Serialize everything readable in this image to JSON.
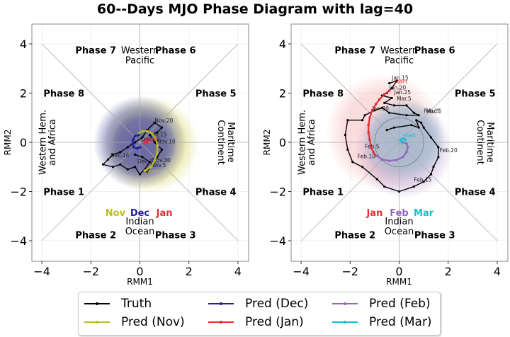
{
  "title": "60--Days MJO Phase Diagram with lag=40",
  "colors": {
    "truth": "#000000",
    "nov": "#bcbd22",
    "dec": "#1f1fa0",
    "jan": "#e03030",
    "feb": "#9467bd",
    "mar": "#17becf"
  },
  "chart_data": [
    {
      "type": "scatter",
      "subtype": "MJO phase diagram (line trajectories)",
      "xlabel": "RMM1",
      "ylabel": "RMM2",
      "xlim": [
        -4.4,
        4.4
      ],
      "ylim": [
        -4.9,
        4.8
      ],
      "xticks": [
        -4,
        -2,
        0,
        2,
        4
      ],
      "yticks": [
        -4,
        -2,
        0,
        2,
        4
      ],
      "grid": true,
      "phase_labels": [
        "Phase 1",
        "Phase 2",
        "Phase 3",
        "Phase 4",
        "Phase 5",
        "Phase 6",
        "Phase 7",
        "Phase 8"
      ],
      "region_labels": {
        "top": "Western\nPacific",
        "bottom": "Indian\nOcean",
        "left": "Western Hem.\nand Africa",
        "right": "Maritime\nContinent"
      },
      "month_labels": [
        {
          "text": "Nov",
          "color": "nov"
        },
        {
          "text": "Dec",
          "color": "dec"
        },
        {
          "text": "Jan",
          "color": "jan"
        }
      ],
      "series": [
        {
          "name": "Truth",
          "color": "truth",
          "points": [
            [
              0.3,
              -1.2
            ],
            [
              0.5,
              -0.9
            ],
            [
              0.7,
              -0.6
            ],
            [
              0.9,
              -0.3
            ],
            [
              0.6,
              0.0
            ],
            [
              0.4,
              0.3
            ],
            [
              0.7,
              0.4
            ],
            [
              0.9,
              0.6
            ],
            [
              0.6,
              0.8
            ],
            [
              0.3,
              0.5
            ],
            [
              0.1,
              0.2
            ],
            [
              -0.2,
              0.0
            ],
            [
              -0.5,
              -0.2
            ],
            [
              -0.8,
              -0.4
            ],
            [
              -1.1,
              -0.5
            ],
            [
              -1.3,
              -0.7
            ],
            [
              -1.5,
              -0.9
            ],
            [
              -1.1,
              -1.0
            ],
            [
              -0.8,
              -0.9
            ],
            [
              -0.5,
              -1.1
            ],
            [
              -0.2,
              -1.0
            ],
            [
              0.0,
              -1.3
            ],
            [
              0.2,
              -1.1
            ],
            [
              0.4,
              -0.8
            ],
            [
              0.1,
              -0.6
            ],
            [
              -0.2,
              -0.5
            ]
          ],
          "annotations": [
            {
              "text": "Nov.20",
              "at": [
                0.6,
                0.8
              ]
            },
            {
              "text": "Nov.15",
              "at": [
                0.35,
                0.25
              ]
            },
            {
              "text": "Nov.10",
              "at": [
                0.7,
                -0.05
              ]
            },
            {
              "text": "Nov.5",
              "at": [
                0.45,
                -1.0
              ]
            },
            {
              "text": "Nov.30",
              "at": [
                0.5,
                -0.8
              ]
            },
            {
              "text": "Dec.10",
              "at": [
                -0.1,
                -0.85
              ]
            },
            {
              "text": "Dec.14",
              "at": [
                -1.2,
                -0.6
              ]
            },
            {
              "text": "Dec.20",
              "at": [
                0.05,
                0.05
              ]
            }
          ]
        },
        {
          "name": "Pred (Nov)",
          "color": "nov",
          "points": [
            [
              0.2,
              -1.15
            ],
            [
              0.45,
              -1.0
            ],
            [
              0.6,
              -0.75
            ],
            [
              0.7,
              -0.45
            ],
            [
              0.72,
              -0.15
            ],
            [
              0.65,
              0.15
            ],
            [
              0.5,
              0.35
            ],
            [
              0.3,
              0.45
            ],
            [
              0.1,
              0.45
            ],
            [
              -0.05,
              0.35
            ]
          ],
          "annotations": [
            {
              "text": "start",
              "at": [
                0.25,
                -1.25
              ]
            }
          ]
        },
        {
          "name": "Pred (Dec)",
          "color": "dec",
          "points": [
            [
              -0.05,
              0.3
            ],
            [
              -0.2,
              0.25
            ],
            [
              -0.28,
              0.1
            ],
            [
              -0.3,
              -0.05
            ],
            [
              -0.25,
              -0.2
            ],
            [
              -0.1,
              -0.25
            ],
            [
              0.0,
              -0.2
            ]
          ]
        },
        {
          "name": "Pred (Jan)",
          "color": "jan",
          "points": [
            [
              0.15,
              -0.05
            ],
            [
              0.25,
              0.05
            ],
            [
              0.3,
              0.0
            ]
          ],
          "annotations": [
            {
              "text": "start",
              "at": [
                0.2,
                0.05
              ]
            }
          ]
        }
      ]
    },
    {
      "type": "scatter",
      "subtype": "MJO phase diagram (line trajectories)",
      "xlabel": "RMM1",
      "ylabel": "RMM2",
      "xlim": [
        -4.4,
        4.4
      ],
      "ylim": [
        -4.9,
        4.8
      ],
      "xticks": [
        -4,
        -2,
        0,
        2,
        4
      ],
      "yticks": [
        -4,
        -2,
        0,
        2,
        4
      ],
      "grid": true,
      "phase_labels": [
        "Phase 1",
        "Phase 2",
        "Phase 3",
        "Phase 4",
        "Phase 5",
        "Phase 6",
        "Phase 7",
        "Phase 8"
      ],
      "region_labels": {
        "top": "Western\nPacific",
        "bottom": "Indian\nOcean",
        "left": "Western Hem.\nand Africa",
        "right": "Maritime\nContinent"
      },
      "month_labels": [
        {
          "text": "Jan",
          "color": "jan"
        },
        {
          "text": "Feb",
          "color": "feb"
        },
        {
          "text": "Mar",
          "color": "mar"
        }
      ],
      "series": [
        {
          "name": "Truth",
          "color": "truth",
          "points": [
            [
              -0.4,
              2.4
            ],
            [
              -0.1,
              2.5
            ],
            [
              -0.3,
              2.2
            ],
            [
              -0.5,
              2.0
            ],
            [
              -0.7,
              1.9
            ],
            [
              -0.3,
              1.8
            ],
            [
              -0.6,
              1.6
            ],
            [
              -0.2,
              1.5
            ],
            [
              0.3,
              1.5
            ],
            [
              0.6,
              1.2
            ],
            [
              0.8,
              1.1
            ],
            [
              0.3,
              1.1
            ],
            [
              -0.4,
              1.2
            ],
            [
              -0.7,
              1.4
            ],
            [
              -1.0,
              1.3
            ],
            [
              -1.4,
              1.1
            ],
            [
              -1.5,
              0.9
            ],
            [
              -2.1,
              0.9
            ],
            [
              -2.2,
              0.3
            ],
            [
              -2.1,
              -0.3
            ],
            [
              -1.9,
              -0.8
            ],
            [
              -1.5,
              -1.0
            ],
            [
              -0.9,
              -1.5
            ],
            [
              -0.6,
              -1.8
            ],
            [
              0.0,
              -2.0
            ],
            [
              0.6,
              -1.8
            ],
            [
              1.0,
              -1.6
            ],
            [
              1.3,
              -1.3
            ],
            [
              1.4,
              -1.0
            ],
            [
              1.6,
              -0.6
            ],
            [
              1.6,
              -0.2
            ],
            [
              1.3,
              0.2
            ],
            [
              1.0,
              0.6
            ],
            [
              0.9,
              0.8
            ],
            [
              0.7,
              0.9
            ],
            [
              0.8,
              0.6
            ],
            [
              0.5,
              0.7
            ],
            [
              -0.2,
              0.6
            ],
            [
              -0.5,
              0.5
            ]
          ],
          "annotations": [
            {
              "text": "Jan.15",
              "at": [
                -0.3,
                2.55
              ]
            },
            {
              "text": "Jan.20",
              "at": [
                -0.4,
                2.15
              ]
            },
            {
              "text": "Jan.25",
              "at": [
                -0.2,
                1.95
              ]
            },
            {
              "text": "Mar.5",
              "at": [
                -0.1,
                1.7
              ]
            },
            {
              "text": "Jan.30",
              "at": [
                -1.1,
                1.3
              ]
            },
            {
              "text": "Feb.25",
              "at": [
                1.0,
                1.2
              ]
            },
            {
              "text": "Mar.1",
              "at": [
                1.1,
                1.2
              ]
            },
            {
              "text": "Feb.5",
              "at": [
                -1.4,
                -0.25
              ]
            },
            {
              "text": "Feb.10",
              "at": [
                -1.7,
                -0.65
              ]
            },
            {
              "text": "Feb.15",
              "at": [
                0.6,
                -1.6
              ]
            },
            {
              "text": "Feb.20",
              "at": [
                1.65,
                -0.4
              ]
            }
          ]
        },
        {
          "name": "Pred (Jan)",
          "color": "jan",
          "points": [
            [
              -0.4,
              2.1
            ],
            [
              -0.6,
              1.95
            ],
            [
              -0.8,
              1.75
            ],
            [
              -0.95,
              1.55
            ],
            [
              -1.1,
              1.3
            ],
            [
              -1.2,
              1.0
            ],
            [
              -1.25,
              0.7
            ],
            [
              -1.25,
              0.4
            ],
            [
              -1.2,
              0.1
            ],
            [
              -1.15,
              -0.2
            ],
            [
              -1.05,
              -0.4
            ],
            [
              -0.95,
              -0.55
            ]
          ],
          "annotations": [
            {
              "text": "start",
              "at": [
                -0.2,
                2.4
              ]
            }
          ]
        },
        {
          "name": "Pred (Feb)",
          "color": "feb",
          "points": [
            [
              -0.9,
              -0.55
            ],
            [
              -0.7,
              -0.7
            ],
            [
              -0.4,
              -0.75
            ],
            [
              -0.1,
              -0.72
            ],
            [
              0.15,
              -0.6
            ],
            [
              0.3,
              -0.4
            ],
            [
              0.35,
              -0.2
            ],
            [
              0.3,
              -0.05
            ],
            [
              0.15,
              0.0
            ]
          ]
        },
        {
          "name": "Pred (Mar)",
          "color": "mar",
          "points": [
            [
              0.12,
              0.0
            ],
            [
              0.05,
              0.1
            ],
            [
              0.15,
              0.15
            ],
            [
              0.25,
              0.1
            ]
          ],
          "annotations": [
            {
              "text": "start",
              "at": [
                0.15,
                0.2
              ]
            }
          ]
        }
      ]
    }
  ],
  "legend": {
    "placement": "bottom-center",
    "entries": [
      {
        "label": "Truth",
        "color": "truth"
      },
      {
        "label": "Pred (Nov)",
        "color": "nov"
      },
      {
        "label": "Pred (Dec)",
        "color": "dec"
      },
      {
        "label": "Pred (Jan)",
        "color": "jan"
      },
      {
        "label": "Pred (Feb)",
        "color": "feb"
      },
      {
        "label": "Pred (Mar)",
        "color": "mar"
      }
    ]
  }
}
